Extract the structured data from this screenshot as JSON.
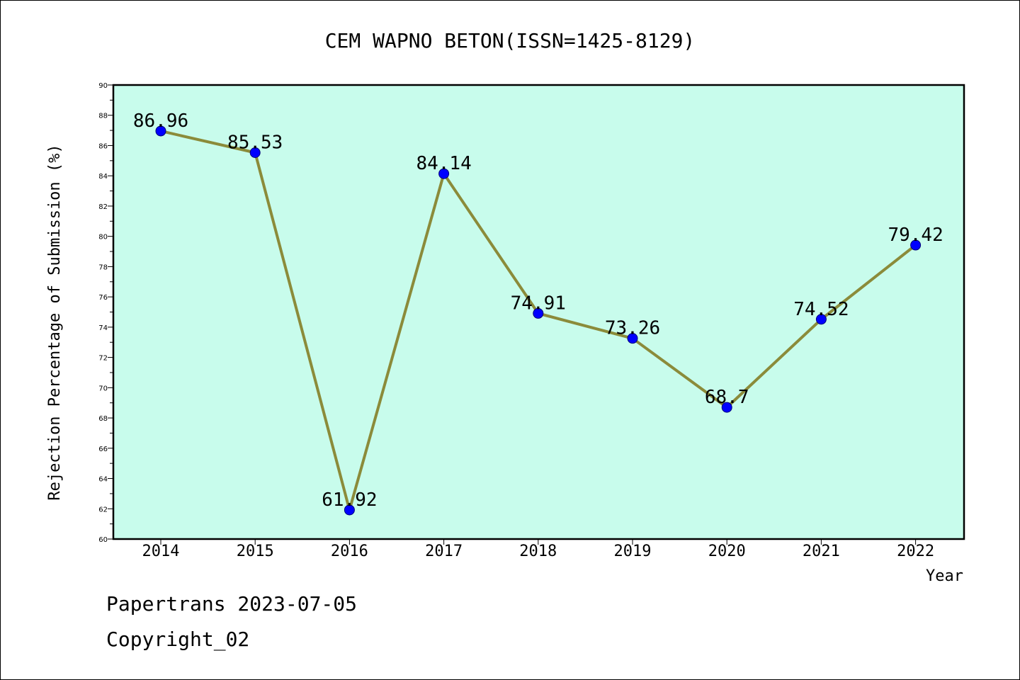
{
  "chart_data": {
    "type": "line",
    "title": "CEM WAPNO BETON(ISSN=1425-8129)",
    "xlabel": "Year",
    "ylabel": "Rejection Percentage of Submission (%)",
    "categories": [
      "2014",
      "2015",
      "2016",
      "2017",
      "2018",
      "2019",
      "2020",
      "2021",
      "2022"
    ],
    "values": [
      86.96,
      85.53,
      61.92,
      84.14,
      74.91,
      73.26,
      68.7,
      74.52,
      79.42
    ],
    "data_labels": [
      "86.96",
      "85.53",
      "61.92",
      "84.14",
      "74.91",
      "73.26",
      "68.7",
      "74.52",
      "79.42"
    ],
    "ylim": [
      60,
      90
    ],
    "yticks": [
      60,
      62,
      64,
      66,
      68,
      70,
      72,
      74,
      76,
      78,
      80,
      82,
      84,
      86,
      88,
      90
    ],
    "grid": false,
    "legend": "none",
    "colors": {
      "plot_background": "#c8fcec",
      "line": "#8b8b3a",
      "marker": "#0000ff"
    }
  },
  "footer": {
    "line1": "Papertrans 2023-07-05",
    "line2": "Copyright_02"
  }
}
